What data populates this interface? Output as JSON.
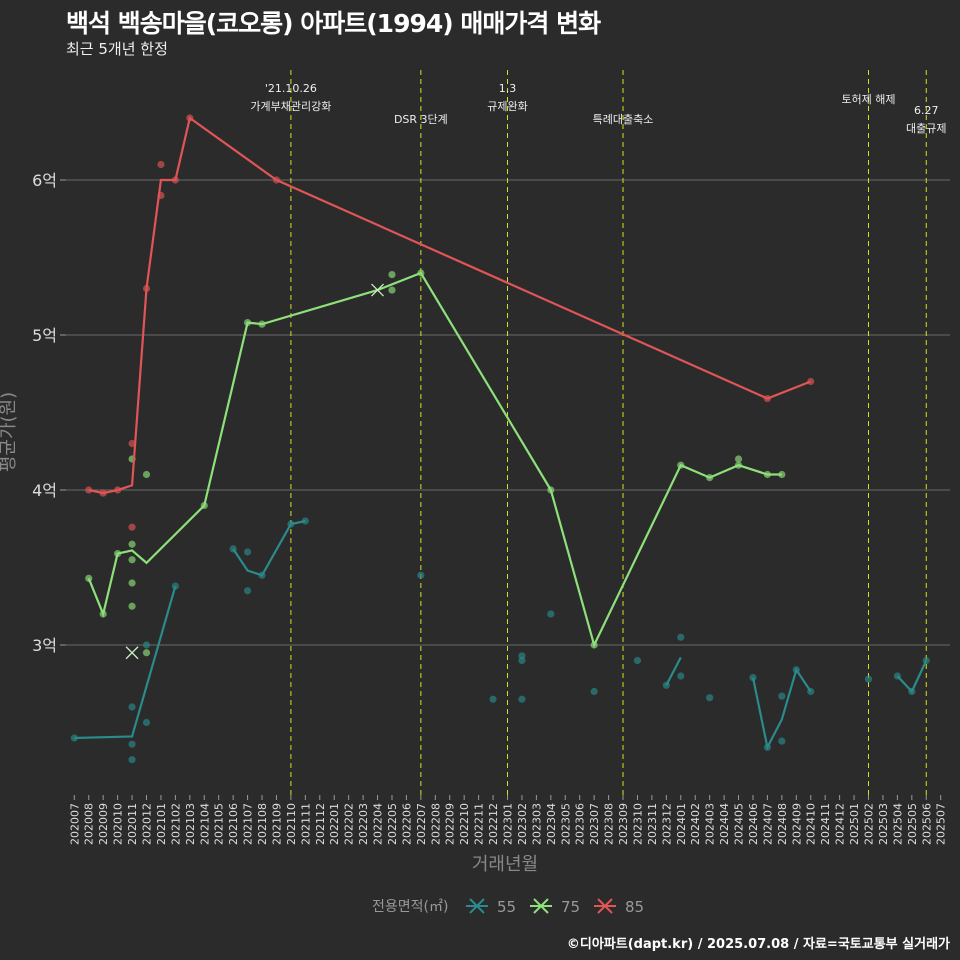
{
  "title": "백석 백송마을(코오롱) 아파트(1994) 매매가격 변화",
  "subtitle": "최근 5개년 한정",
  "caption": "©디아파트(dapt.kr) / 2025.07.08 / 자료=국토교통부 실거래가",
  "chart_data": {
    "type": "line",
    "xlabel": "거래년월",
    "ylabel": "평균가(원)",
    "ylim": [
      2.05,
      6.8
    ],
    "y_ticks": [
      {
        "v": 3,
        "label": "3억"
      },
      {
        "v": 4,
        "label": "4억"
      },
      {
        "v": 5,
        "label": "5억"
      },
      {
        "v": 6,
        "label": "6억"
      }
    ],
    "x_ticks": [
      "202007",
      "202008",
      "202009",
      "202010",
      "202011",
      "202012",
      "202101",
      "202102",
      "202103",
      "202104",
      "202105",
      "202106",
      "202107",
      "202108",
      "202109",
      "202110",
      "202111",
      "202112",
      "202201",
      "202202",
      "202203",
      "202204",
      "202205",
      "202206",
      "202207",
      "202208",
      "202209",
      "202210",
      "202211",
      "202212",
      "202301",
      "202302",
      "202303",
      "202304",
      "202305",
      "202306",
      "202307",
      "202308",
      "202309",
      "202310",
      "202311",
      "202312",
      "202401",
      "202402",
      "202403",
      "202404",
      "202405",
      "202406",
      "202407",
      "202408",
      "202409",
      "202410",
      "202411",
      "202412",
      "202501",
      "202502",
      "202503",
      "202504",
      "202505",
      "202506",
      "202507"
    ],
    "legend": {
      "title": "전용면적(㎡)",
      "position": "bottom"
    },
    "events": [
      {
        "month": "202110",
        "lines": [
          "'21.10.26",
          "가계부채관리강화"
        ],
        "row": 0
      },
      {
        "month": "202207",
        "lines": [
          "DSR 3단계"
        ],
        "row": 2
      },
      {
        "month": "202301",
        "lines": [
          "1.3",
          "규제완화"
        ],
        "row": 0
      },
      {
        "month": "202309",
        "lines": [
          "특례대출축소"
        ],
        "row": 2
      },
      {
        "month": "202502",
        "lines": [
          "토허제 해제"
        ],
        "row": 1
      },
      {
        "month": "202506",
        "lines": [
          "6.27",
          "대출규제"
        ],
        "row": 3
      }
    ],
    "series": [
      {
        "name": "55",
        "color": "#2a8a8c",
        "segments": [
          [
            [
              "202007",
              2.4
            ],
            [
              "202011",
              2.41
            ],
            [
              "202102",
              3.38
            ]
          ],
          [
            [
              "202106",
              3.62
            ],
            [
              "202107",
              3.48
            ],
            [
              "202108",
              3.45
            ],
            [
              "202110",
              3.78
            ],
            [
              "202111",
              3.8
            ]
          ],
          [
            [
              "202312",
              2.74
            ],
            [
              "202401",
              2.92
            ]
          ],
          [
            [
              "202406",
              2.79
            ],
            [
              "202407",
              2.34
            ],
            [
              "202408",
              2.52
            ],
            [
              "202409",
              2.84
            ],
            [
              "202410",
              2.7
            ]
          ],
          [
            [
              "202504",
              2.8
            ],
            [
              "202505",
              2.7
            ],
            [
              "202506",
              2.9
            ]
          ]
        ],
        "points": [
          [
            "202007",
            2.4
          ],
          [
            "202011",
            2.6
          ],
          [
            "202011",
            2.36
          ],
          [
            "202011",
            2.26
          ],
          [
            "202012",
            3.0
          ],
          [
            "202012",
            2.5
          ],
          [
            "202102",
            3.38
          ],
          [
            "202106",
            3.62
          ],
          [
            "202107",
            3.6
          ],
          [
            "202107",
            3.35
          ],
          [
            "202108",
            3.45
          ],
          [
            "202110",
            3.78
          ],
          [
            "202111",
            3.8
          ],
          [
            "202207",
            3.45
          ],
          [
            "202212",
            2.65
          ],
          [
            "202302",
            2.93
          ],
          [
            "202302",
            2.9
          ],
          [
            "202302",
            2.65
          ],
          [
            "202304",
            3.2
          ],
          [
            "202307",
            2.7
          ],
          [
            "202310",
            2.9
          ],
          [
            "202312",
            2.74
          ],
          [
            "202401",
            3.05
          ],
          [
            "202401",
            2.8
          ],
          [
            "202403",
            2.66
          ],
          [
            "202406",
            2.79
          ],
          [
            "202407",
            2.34
          ],
          [
            "202408",
            2.67
          ],
          [
            "202408",
            2.38
          ],
          [
            "202409",
            2.84
          ],
          [
            "202410",
            2.7
          ],
          [
            "202502",
            2.78
          ],
          [
            "202504",
            2.8
          ],
          [
            "202505",
            2.7
          ],
          [
            "202506",
            2.9
          ]
        ],
        "marks": []
      },
      {
        "name": "75",
        "color": "#8ee07a",
        "segments": [
          [
            [
              "202008",
              3.43
            ],
            [
              "202009",
              3.2
            ],
            [
              "202010",
              3.59
            ],
            [
              "202011",
              3.61
            ],
            [
              "202012",
              3.53
            ],
            [
              "202104",
              3.9
            ],
            [
              "202107",
              5.08
            ],
            [
              "202108",
              5.07
            ],
            [
              "202204",
              5.29
            ],
            [
              "202207",
              5.4
            ],
            [
              "202304",
              4.0
            ],
            [
              "202307",
              3.0
            ],
            [
              "202401",
              4.16
            ],
            [
              "202403",
              4.08
            ],
            [
              "202405",
              4.16
            ],
            [
              "202407",
              4.1
            ],
            [
              "202408",
              4.1
            ]
          ]
        ],
        "points": [
          [
            "202008",
            3.43
          ],
          [
            "202009",
            3.2
          ],
          [
            "202010",
            3.59
          ],
          [
            "202011",
            4.2
          ],
          [
            "202011",
            3.65
          ],
          [
            "202011",
            3.55
          ],
          [
            "202011",
            3.4
          ],
          [
            "202011",
            3.25
          ],
          [
            "202012",
            4.1
          ],
          [
            "202012",
            2.95
          ],
          [
            "202104",
            3.9
          ],
          [
            "202107",
            5.08
          ],
          [
            "202108",
            5.07
          ],
          [
            "202205",
            5.39
          ],
          [
            "202205",
            5.29
          ],
          [
            "202207",
            5.4
          ],
          [
            "202304",
            4.0
          ],
          [
            "202307",
            3.0
          ],
          [
            "202401",
            4.16
          ],
          [
            "202403",
            4.08
          ],
          [
            "202405",
            4.2
          ],
          [
            "202405",
            4.16
          ],
          [
            "202407",
            4.1
          ],
          [
            "202408",
            4.1
          ]
        ],
        "marks": [
          [
            "202011",
            2.95
          ],
          [
            "202204",
            5.29
          ]
        ]
      },
      {
        "name": "85",
        "color": "#e05555",
        "segments": [
          [
            [
              "202008",
              4.0
            ],
            [
              "202009",
              3.98
            ],
            [
              "202010",
              4.0
            ],
            [
              "202011",
              4.03
            ],
            [
              "202012",
              5.3
            ],
            [
              "202101",
              6.0
            ],
            [
              "202102",
              6.0
            ],
            [
              "202103",
              6.4
            ],
            [
              "202109",
              6.0
            ],
            [
              "202407",
              4.59
            ],
            [
              "202410",
              4.7
            ]
          ]
        ],
        "points": [
          [
            "202008",
            4.0
          ],
          [
            "202009",
            3.98
          ],
          [
            "202010",
            4.0
          ],
          [
            "202011",
            4.3
          ],
          [
            "202011",
            3.76
          ],
          [
            "202012",
            5.3
          ],
          [
            "202101",
            6.1
          ],
          [
            "202101",
            5.9
          ],
          [
            "202102",
            6.0
          ],
          [
            "202103",
            6.4
          ],
          [
            "202109",
            6.0
          ],
          [
            "202407",
            4.59
          ],
          [
            "202410",
            4.7
          ]
        ],
        "marks": []
      }
    ]
  }
}
